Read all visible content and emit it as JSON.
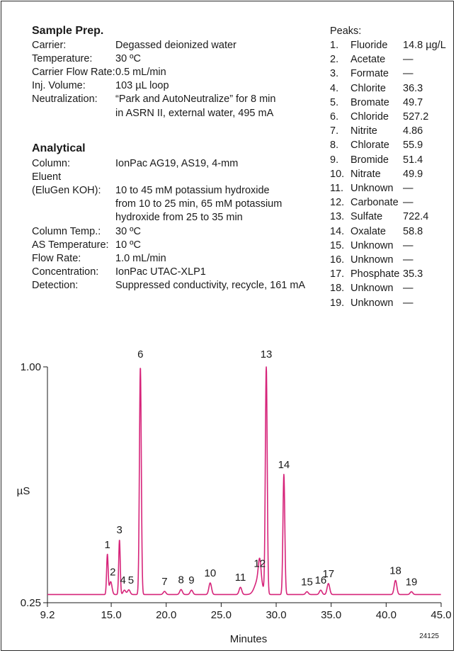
{
  "sample_prep": {
    "title": "Sample Prep.",
    "rows": [
      {
        "label": "Carrier:",
        "lines": [
          "Degassed deionized water"
        ]
      },
      {
        "label": "Temperature:",
        "lines": [
          "30 ºC"
        ]
      },
      {
        "label": "Carrier Flow Rate:",
        "lines": [
          "0.5 mL/min"
        ]
      },
      {
        "label": "Inj. Volume:",
        "lines": [
          "103 µL loop"
        ]
      },
      {
        "label": "Neutralization:",
        "lines": [
          "“Park and AutoNeutralize” for 8 min",
          "in ASRN II, external water, 495 mA"
        ]
      }
    ]
  },
  "analytical": {
    "title": "Analytical",
    "rows": [
      {
        "label": "Column:",
        "lines": [
          "IonPac AG19, AS19, 4-mm"
        ]
      },
      {
        "label": "Eluent",
        "lines": []
      },
      {
        "label": "(EluGen KOH):",
        "lines": [
          "10 to 45 mM potassium hydroxide",
          "from 10 to 25 min, 65 mM potassium",
          "hydroxide from 25 to 35 min"
        ]
      },
      {
        "label": "Column Temp.:",
        "lines": [
          "30 ºC"
        ]
      },
      {
        "label": "AS Temperature:",
        "lines": [
          "10 ºC"
        ]
      },
      {
        "label": "Flow Rate:",
        "lines": [
          "1.0 mL/min"
        ]
      },
      {
        "label": "Concentration:",
        "lines": [
          "IonPac UTAC-XLP1"
        ]
      },
      {
        "label": "Detection:",
        "lines": [
          "Suppressed conductivity, recycle, 161 mA"
        ]
      }
    ]
  },
  "peaks": {
    "title": "Peaks:",
    "items": [
      {
        "num": "1.",
        "name": "Fluoride",
        "value": "14.8 µg/L"
      },
      {
        "num": "2.",
        "name": "Acetate",
        "value": "—"
      },
      {
        "num": "3.",
        "name": "Formate",
        "value": "—"
      },
      {
        "num": "4.",
        "name": "Chlorite",
        "value": "36.3"
      },
      {
        "num": "5.",
        "name": "Bromate",
        "value": "49.7"
      },
      {
        "num": "6.",
        "name": "Chloride",
        "value": "527.2"
      },
      {
        "num": "7.",
        "name": "Nitrite",
        "value": "4.86"
      },
      {
        "num": "8.",
        "name": "Chlorate",
        "value": "55.9"
      },
      {
        "num": "9.",
        "name": "Bromide",
        "value": "51.4"
      },
      {
        "num": "10.",
        "name": "Nitrate",
        "value": "49.9"
      },
      {
        "num": "11.",
        "name": "Unknown",
        "value": "—"
      },
      {
        "num": "12.",
        "name": "Carbonate",
        "value": "—"
      },
      {
        "num": "13.",
        "name": "Sulfate",
        "value": "722.4"
      },
      {
        "num": "14.",
        "name": "Oxalate",
        "value": "58.8"
      },
      {
        "num": "15.",
        "name": "Unknown",
        "value": "—"
      },
      {
        "num": "16.",
        "name": "Unknown",
        "value": "—"
      },
      {
        "num": "17.",
        "name": "Phosphate",
        "value": "35.3"
      },
      {
        "num": "18.",
        "name": "Unknown",
        "value": "—"
      },
      {
        "num": "19.",
        "name": "Unknown",
        "value": "—"
      }
    ]
  },
  "chart_data": {
    "type": "line",
    "xlabel": "Minutes",
    "ylabel": "µS",
    "xlim": [
      9.2,
      45.0
    ],
    "ylim": [
      0.25,
      1.0
    ],
    "x_ticks": [
      "9.2",
      "15.0",
      "20.0",
      "25.0",
      "30.0",
      "35.0",
      "40.0",
      "45.0"
    ],
    "x_tick_values": [
      9.2,
      15.0,
      20.0,
      25.0,
      30.0,
      35.0,
      40.0,
      45.0
    ],
    "y_ticks": [
      "0.25",
      "1.00"
    ],
    "y_tick_values": [
      0.25,
      1.0
    ],
    "line_color": "#d6247a",
    "baseline": 0.276,
    "peaks": [
      {
        "label": "1",
        "time": 14.65,
        "height": 0.403
      },
      {
        "label": "2",
        "time": 14.95,
        "height": 0.317
      },
      {
        "label": "3",
        "time": 15.75,
        "height": 0.45
      },
      {
        "label": "4",
        "time": 16.2,
        "height": 0.29
      },
      {
        "label": "5",
        "time": 16.6,
        "height": 0.291
      },
      {
        "label": "6",
        "time": 17.65,
        "height": 1.0
      },
      {
        "label": "7",
        "time": 19.85,
        "height": 0.286
      },
      {
        "label": "8",
        "time": 21.35,
        "height": 0.292
      },
      {
        "label": "9",
        "time": 22.3,
        "height": 0.29
      },
      {
        "label": "10",
        "time": 24.0,
        "height": 0.313
      },
      {
        "label": "11",
        "time": 26.75,
        "height": 0.299
      },
      {
        "label": "12",
        "time": 28.5,
        "height": 0.344
      },
      {
        "label": "13",
        "time": 29.1,
        "height": 1.0
      },
      {
        "label": "14",
        "time": 30.7,
        "height": 0.658
      },
      {
        "label": "15",
        "time": 32.8,
        "height": 0.285
      },
      {
        "label": "16",
        "time": 34.05,
        "height": 0.29
      },
      {
        "label": "17",
        "time": 34.75,
        "height": 0.311
      },
      {
        "label": "18",
        "time": 40.85,
        "height": 0.321
      },
      {
        "label": "19",
        "time": 42.3,
        "height": 0.285
      }
    ]
  },
  "figure_code": "24125"
}
